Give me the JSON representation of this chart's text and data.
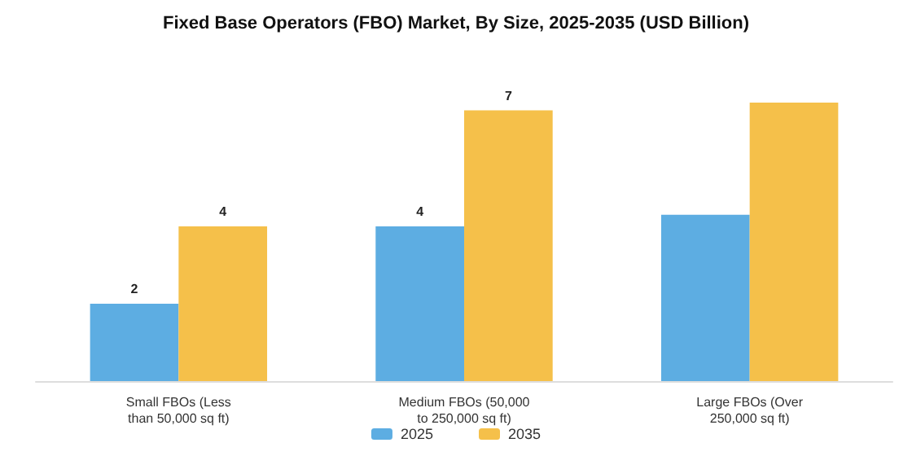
{
  "chart_data": {
    "type": "bar",
    "title": "Fixed Base Operators (FBO) Market, By Size, 2025-2035 (USD Billion)",
    "categories": [
      "Small FBOs (Less\nthan 50,000 sq ft)",
      "Medium FBOs (50,000\nto 250,000 sq ft)",
      "Large FBOs (Over\n250,000 sq ft)"
    ],
    "series": [
      {
        "name": "2025",
        "color": "#5dade2",
        "values": [
          2,
          4,
          4.3
        ],
        "value_labels": [
          "2",
          "4",
          null
        ]
      },
      {
        "name": "2035",
        "color": "#f5c04a",
        "values": [
          4,
          7,
          7.2
        ],
        "value_labels": [
          "4",
          "7",
          null
        ]
      }
    ],
    "grid": false,
    "legend": "bottom"
  }
}
